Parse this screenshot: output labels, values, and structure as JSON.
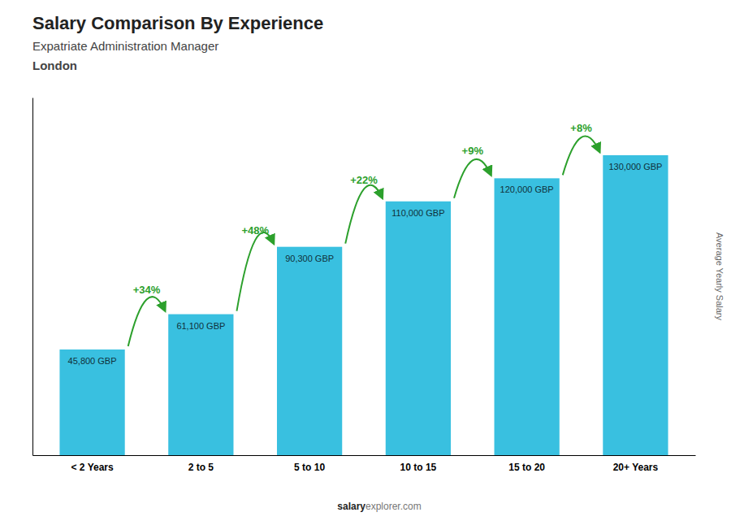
{
  "chart_data": {
    "type": "bar",
    "title": "Salary Comparison By Experience",
    "subtitle": "Expatriate Administration Manager",
    "city": "London",
    "ylabel": "Average Yearly Salary",
    "categories": [
      "< 2 Years",
      "2 to 5",
      "5 to 10",
      "10 to 15",
      "15 to 20",
      "20+ Years"
    ],
    "values": [
      45800,
      61100,
      90300,
      110000,
      120000,
      130000
    ],
    "value_labels": [
      "45,800 GBP",
      "61,100 GBP",
      "90,300 GBP",
      "110,000 GBP",
      "120,000 GBP",
      "130,000 GBP"
    ],
    "data_labels": true,
    "color": "#39C0E0",
    "ylim": [
      0,
      155000
    ],
    "tick_labels": "x",
    "annotations": [
      "+34%",
      "+48%",
      "+22%",
      "+9%",
      "+8%"
    ],
    "footer": [
      "salary",
      "explorer.com"
    ]
  }
}
